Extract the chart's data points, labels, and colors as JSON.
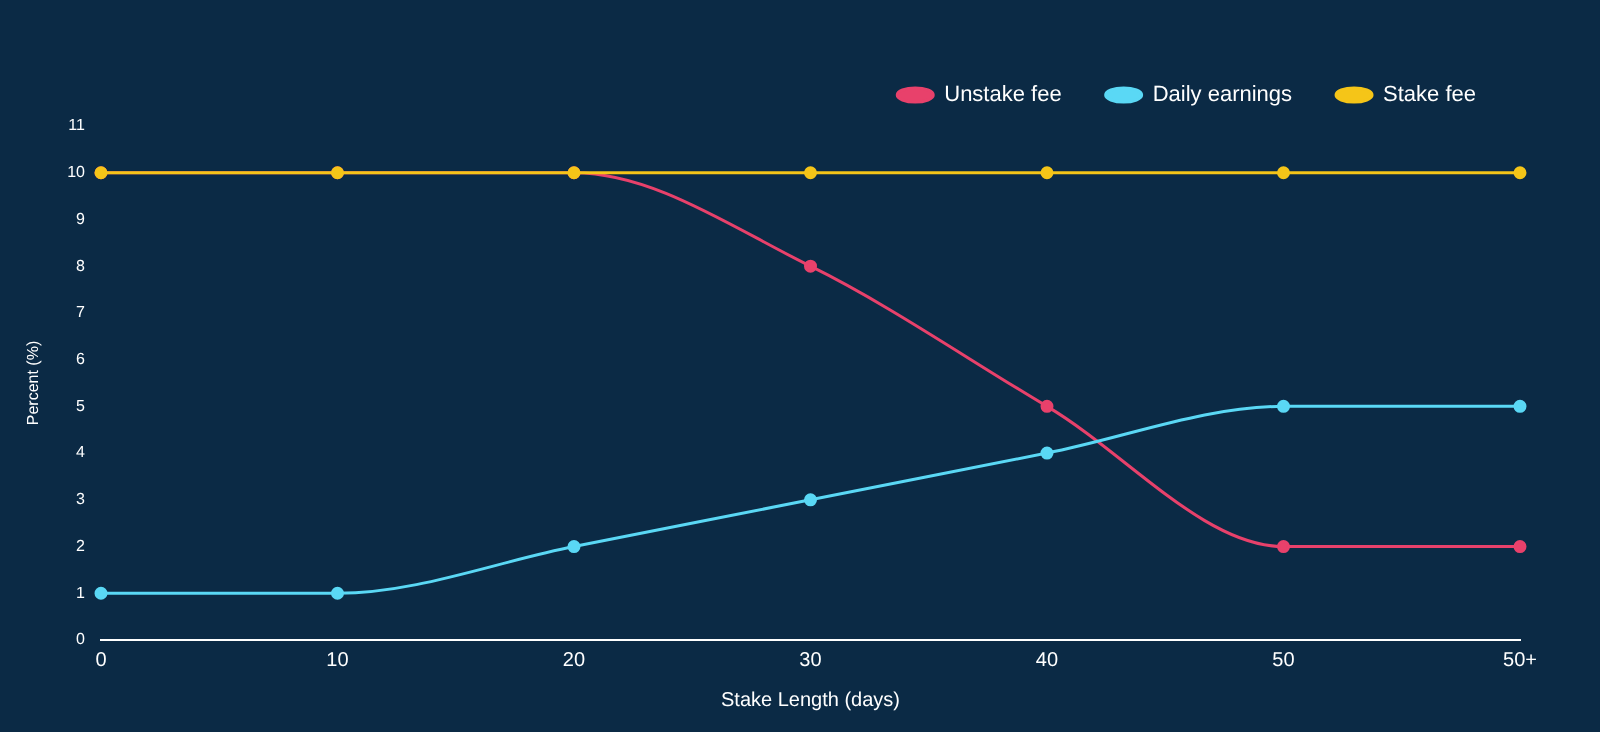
{
  "chart_data": {
    "type": "line",
    "xlabel": "Stake Length (days)",
    "ylabel": "Percent (%)",
    "categories": [
      "0",
      "10",
      "20",
      "30",
      "40",
      "50",
      "50+"
    ],
    "series": [
      {
        "name": "Unstake fee",
        "color": "#e8416b",
        "values": [
          10,
          10,
          10,
          8,
          5,
          2,
          2
        ]
      },
      {
        "name": "Daily earnings",
        "color": "#5ad8f5",
        "values": [
          1,
          1,
          2,
          3,
          4,
          5,
          5
        ]
      },
      {
        "name": "Stake fee",
        "color": "#f5c518",
        "values": [
          10,
          10,
          10,
          10,
          10,
          10,
          10
        ]
      }
    ],
    "ylim": [
      0,
      11
    ],
    "yticks": [
      0,
      1,
      2,
      3,
      4,
      5,
      6,
      7,
      8,
      9,
      10,
      11
    ],
    "grid": false,
    "legend": "top right",
    "marker": "circle",
    "line_style": "solid"
  }
}
